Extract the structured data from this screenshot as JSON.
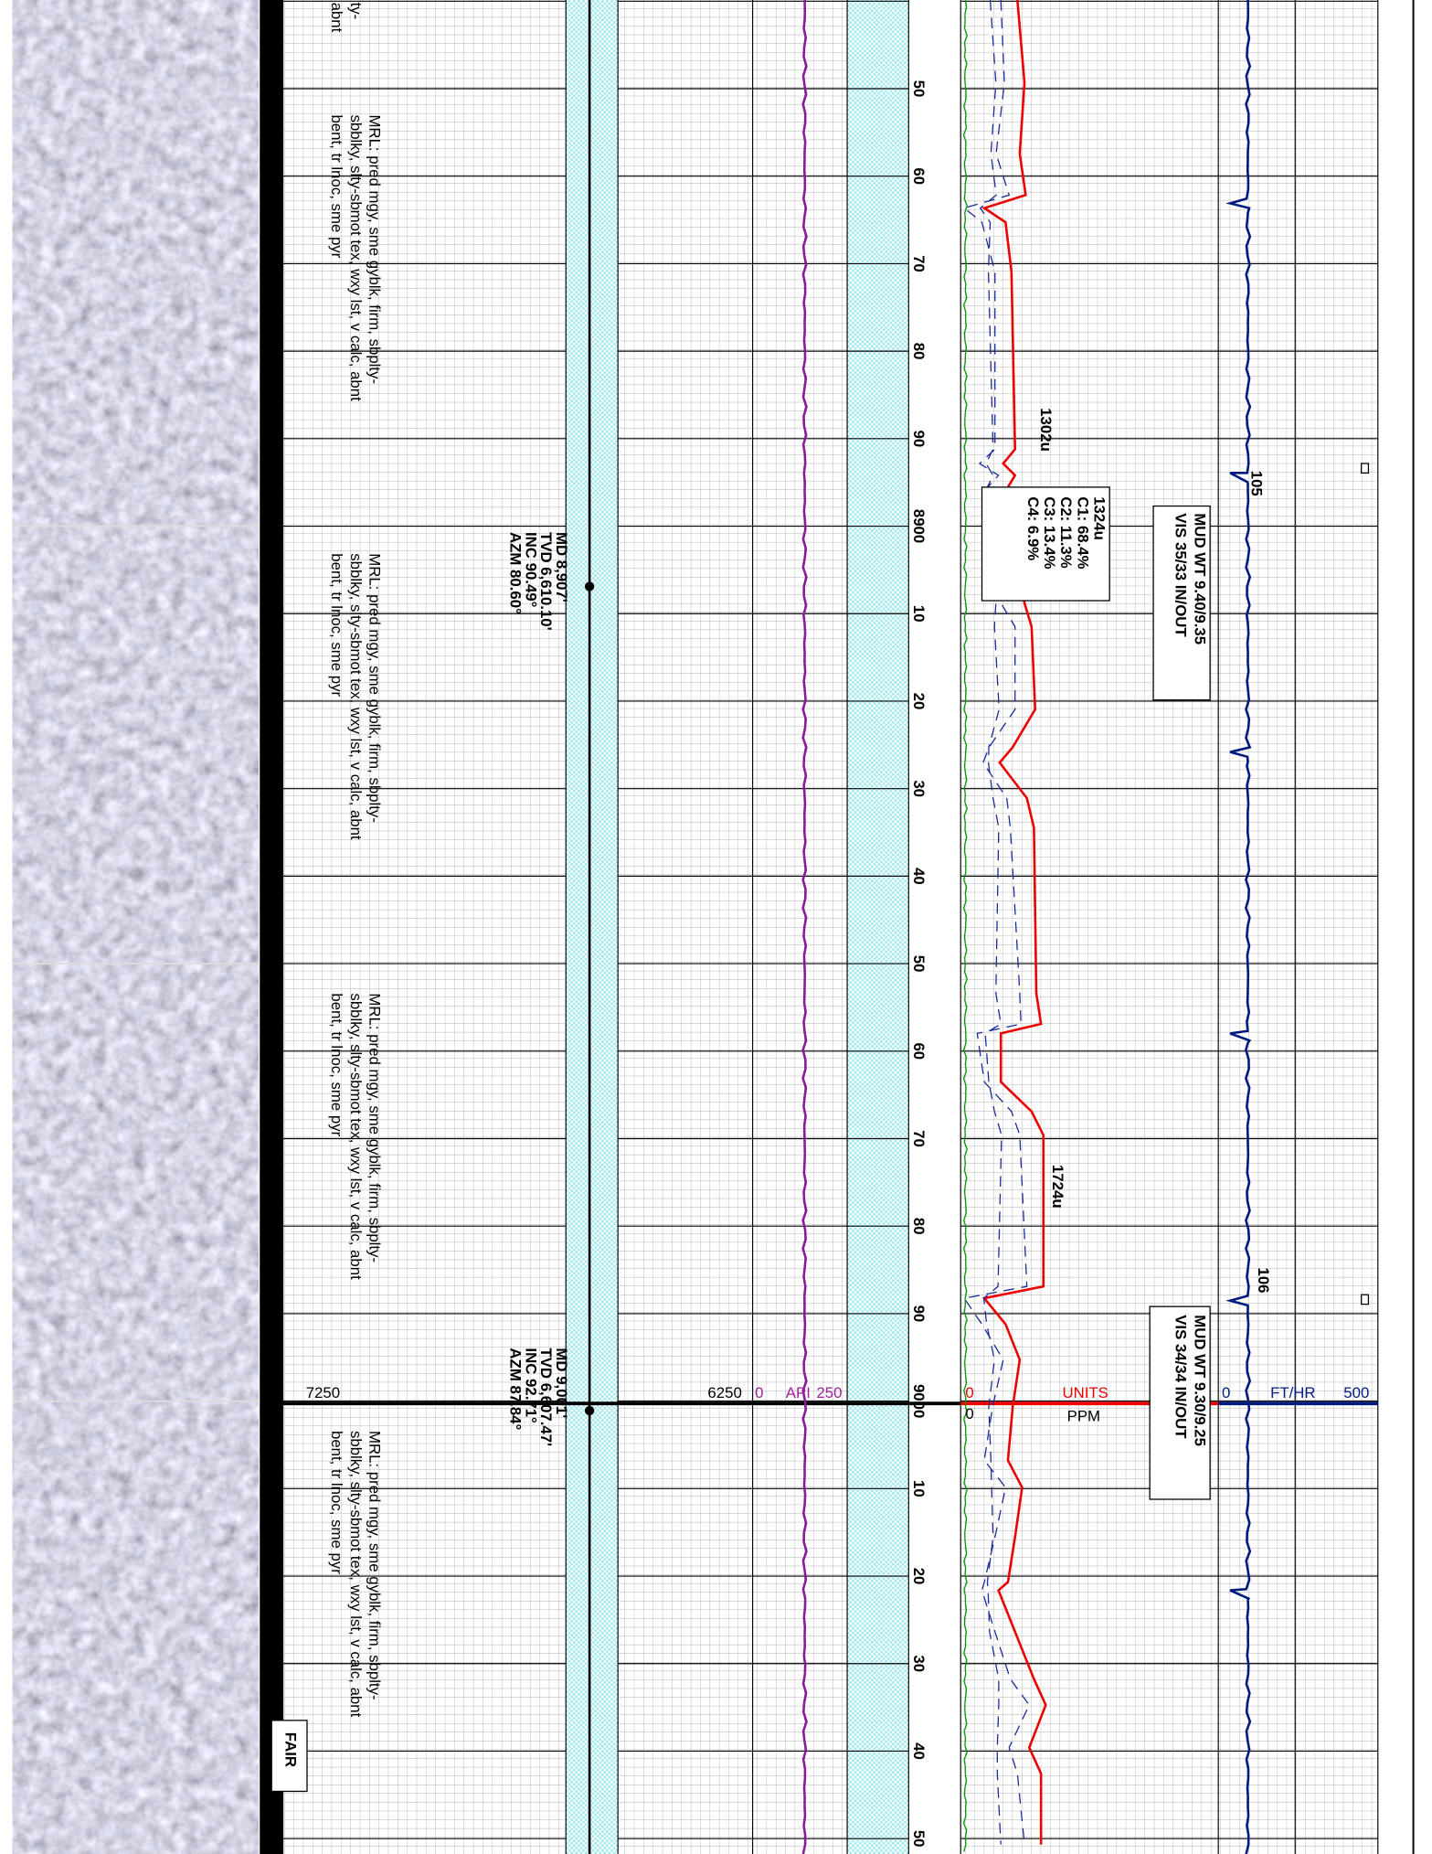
{
  "lithology": [
    [
      "ty-",
      "abnt"
    ],
    [
      "MRL: pred mgy, sme gyblk, firm, sbplty-",
      "sbblky, slty-sbmot tex, wxy lst, v calc, abnt",
      "bent, tr lnoc, sme pyr"
    ],
    [
      "MRL: pred mgy, sme gyblk, firm, sbplty-",
      "sbblky, slty-sbmot tex, wxy lst, v calc, abnt",
      "bent, tr lnoc, sme pyr"
    ],
    [
      "MRL: pred mgy, sme gyblk, firm, sbplty-",
      "sbblky, slty-sbmot tex, wxy lst, v calc, abnt",
      "bent, tr lnoc, sme pyr"
    ],
    [
      "MRL: pred mgy, sme gyblk, firm, sbplty-",
      "sbblky, slty-sbmot tex, wxy lst, v calc, abnt",
      "bent, tr lnoc, sme pyr"
    ]
  ],
  "surveys": [
    [
      "MD 8,907'",
      "TVD 6,610.10'",
      "INC 90.49°",
      "AZM 80.60°"
    ],
    [
      "MD 9,001'",
      "TVD 6,607.47'",
      "INC 92.71°",
      "AZM 87.84°"
    ]
  ],
  "depth_labels": [
    "50",
    "60",
    "70",
    "80",
    "90",
    "8900",
    "10",
    "20",
    "30",
    "40",
    "50",
    "60",
    "70",
    "80",
    "90",
    "9000",
    "10",
    "20",
    "30",
    "40",
    "50"
  ],
  "gas_peaks": [
    "1302u",
    "1724u"
  ],
  "gas_ratio_box": [
    "1324u",
    "C1: 68.4%",
    "C2: 11.3%",
    "C3: 13.4%",
    "C4: 6.9%"
  ],
  "mud_boxes": [
    [
      "MUD WT 9.40/9.35",
      "VIS 35/33  IN/OUT"
    ],
    [
      "MUD WT 9.30/9.25",
      "VIS 34/34  IN/OUT"
    ]
  ],
  "rop_annotations": [
    "105",
    "106"
  ],
  "scales": {
    "lith_left": "7250",
    "gamma_left": "6250",
    "gamma_min": "0",
    "gamma_unit": "API",
    "gamma_max": "250",
    "gas_min": "0",
    "gas_unit": "UNITS",
    "gas_sub_min": "0",
    "gas_sub_unit": "PPM",
    "rop_min": "0",
    "rop_unit": "FT/HR",
    "rop_max": "500"
  },
  "show_rating": "FAIR"
}
